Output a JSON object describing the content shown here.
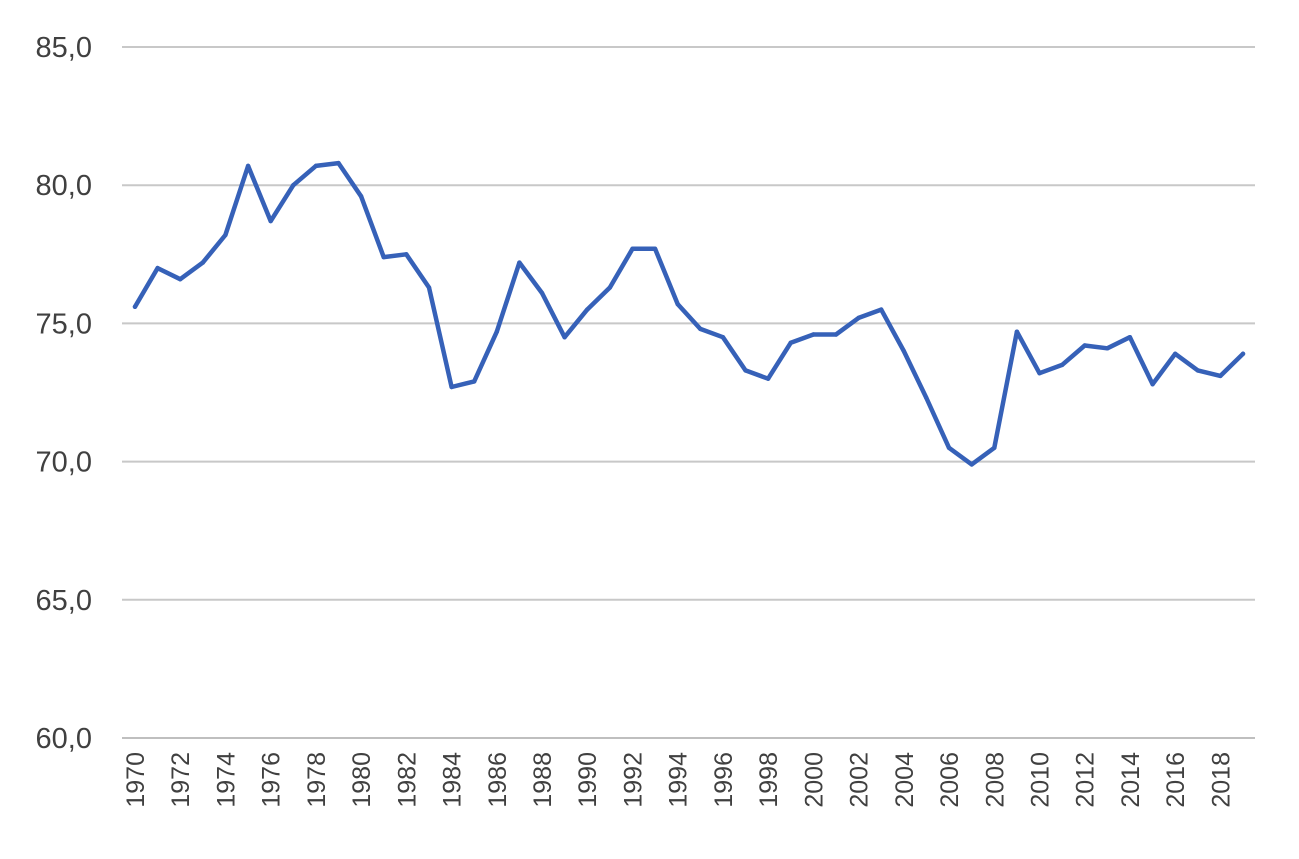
{
  "chart_data": {
    "type": "line",
    "title": "",
    "xlabel": "",
    "ylabel": "",
    "ylim": [
      60,
      85
    ],
    "yticks": [
      "60,0",
      "65,0",
      "70,0",
      "75,0",
      "80,0",
      "85,0"
    ],
    "ytick_values": [
      60,
      65,
      70,
      75,
      80,
      85
    ],
    "grid": true,
    "legend": "none",
    "x": [
      1970,
      1971,
      1972,
      1973,
      1974,
      1975,
      1976,
      1977,
      1978,
      1979,
      1980,
      1981,
      1982,
      1983,
      1984,
      1985,
      1986,
      1987,
      1988,
      1989,
      1990,
      1991,
      1992,
      1993,
      1994,
      1995,
      1996,
      1997,
      1998,
      1999,
      2000,
      2001,
      2002,
      2003,
      2004,
      2005,
      2006,
      2007,
      2008,
      2009,
      2010,
      2011,
      2012,
      2013,
      2014,
      2015,
      2016,
      2017,
      2018,
      2019
    ],
    "xtick_labels": [
      "1970",
      "1972",
      "1974",
      "1976",
      "1978",
      "1980",
      "1982",
      "1984",
      "1986",
      "1988",
      "1990",
      "1992",
      "1994",
      "1996",
      "1998",
      "2000",
      "2002",
      "2004",
      "2006",
      "2008",
      "2010",
      "2012",
      "2014",
      "2016",
      "2018"
    ],
    "series": [
      {
        "color": "#3661b8",
        "values": [
          75.6,
          77.0,
          76.6,
          77.2,
          78.2,
          80.7,
          78.7,
          80.0,
          80.7,
          80.8,
          79.6,
          77.4,
          77.5,
          76.3,
          72.7,
          72.9,
          74.7,
          77.2,
          76.1,
          74.5,
          75.5,
          76.3,
          77.7,
          77.7,
          75.7,
          74.8,
          74.5,
          73.3,
          73.0,
          74.3,
          74.6,
          74.6,
          75.2,
          75.5,
          74.0,
          72.3,
          70.5,
          69.9,
          70.5,
          74.7,
          73.2,
          73.5,
          74.2,
          74.1,
          74.5,
          72.8,
          73.9,
          73.3,
          73.1,
          73.9
        ]
      }
    ]
  }
}
